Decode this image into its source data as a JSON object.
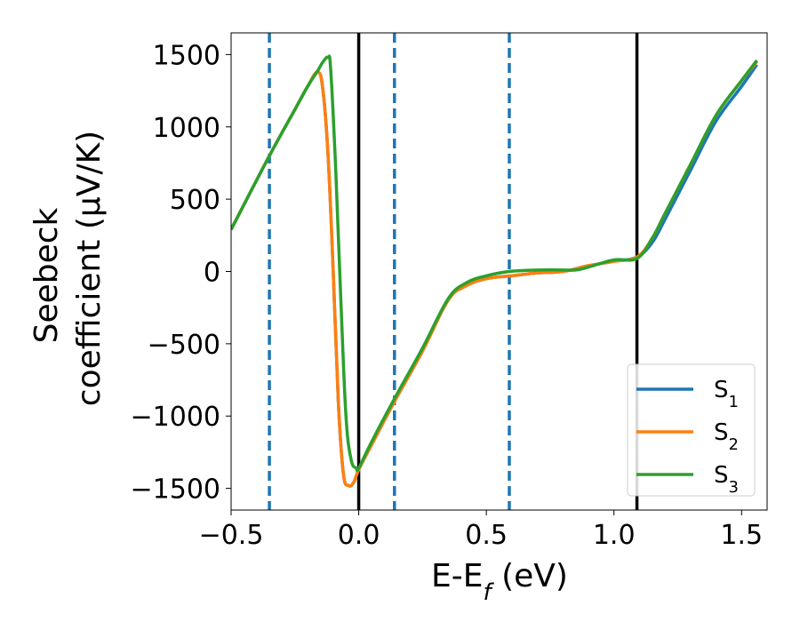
{
  "chart_data": {
    "type": "line",
    "xlabel": "E-E",
    "xlabel_sub": "f",
    "xlabel_unit": " (eV)",
    "ylabel_line1": "Seebeck",
    "ylabel_line2": "coefficient  (μV/K)",
    "xlim": [
      -0.5,
      1.6
    ],
    "ylim": [
      -1650,
      1650
    ],
    "xticks": [
      -0.5,
      0.0,
      0.5,
      1.0,
      1.5
    ],
    "xtick_labels": [
      "−0.5",
      "0.0",
      "0.5",
      "1.0",
      "1.5"
    ],
    "yticks": [
      -1500,
      -1000,
      -500,
      0,
      500,
      1000,
      1500
    ],
    "ytick_labels": [
      "−1500",
      "−1000",
      "−500",
      "0",
      "500",
      "1000",
      "1500"
    ],
    "vlines_solid": [
      0.0,
      1.09
    ],
    "vlines_dashed": [
      -0.35,
      0.14,
      0.59
    ],
    "legend_position": "lower-right",
    "colors": {
      "S1": "#1f77b4",
      "S2": "#ff7f0e",
      "S3": "#2ca02c",
      "solid_vline": "#000000",
      "dashed_vline": "#1f77b4"
    },
    "series": [
      {
        "key": "S1",
        "name": "S",
        "sub": "1",
        "color": "#1f77b4",
        "x": [
          -0.5,
          -0.35,
          -0.25,
          -0.2,
          -0.16,
          -0.14,
          -0.12,
          -0.1,
          -0.08,
          -0.06,
          -0.04,
          -0.02,
          0.0,
          0.05,
          0.14,
          0.25,
          0.35,
          0.42,
          0.5,
          0.6,
          0.7,
          0.8,
          0.9,
          1.0,
          1.09,
          1.15,
          1.2,
          1.3,
          1.4,
          1.5,
          1.56
        ],
        "y": [
          290,
          800,
          1120,
          1280,
          1380,
          1250,
          800,
          0,
          -900,
          -1400,
          -1480,
          -1460,
          -1370,
          -1200,
          -900,
          -550,
          -200,
          -100,
          -50,
          -30,
          -10,
          0,
          40,
          70,
          100,
          200,
          360,
          700,
          1040,
          1280,
          1430
        ]
      },
      {
        "key": "S2",
        "name": "S",
        "sub": "2",
        "color": "#ff7f0e",
        "x": [
          -0.5,
          -0.35,
          -0.25,
          -0.2,
          -0.16,
          -0.14,
          -0.12,
          -0.1,
          -0.08,
          -0.06,
          -0.04,
          -0.02,
          0.0,
          0.05,
          0.14,
          0.25,
          0.35,
          0.42,
          0.5,
          0.6,
          0.7,
          0.8,
          0.9,
          1.0,
          1.09,
          1.15,
          1.2,
          1.3,
          1.4,
          1.5,
          1.56
        ],
        "y": [
          290,
          800,
          1120,
          1280,
          1380,
          1250,
          800,
          0,
          -900,
          -1400,
          -1480,
          -1460,
          -1370,
          -1200,
          -900,
          -550,
          -200,
          -100,
          -50,
          -30,
          -10,
          0,
          40,
          70,
          100,
          230,
          400,
          740,
          1080,
          1320,
          1450
        ]
      },
      {
        "key": "S3",
        "name": "S",
        "sub": "3",
        "color": "#2ca02c",
        "x": [
          -0.5,
          -0.35,
          -0.25,
          -0.2,
          -0.16,
          -0.14,
          -0.12,
          -0.11,
          -0.09,
          -0.07,
          -0.05,
          -0.03,
          -0.01,
          0.0,
          0.05,
          0.14,
          0.25,
          0.35,
          0.42,
          0.5,
          0.59,
          0.7,
          0.8,
          0.85,
          0.9,
          1.0,
          1.09,
          1.15,
          1.2,
          1.3,
          1.4,
          1.5,
          1.56
        ],
        "y": [
          290,
          800,
          1120,
          1280,
          1390,
          1450,
          1480,
          1400,
          700,
          -200,
          -1000,
          -1300,
          -1360,
          -1360,
          -1180,
          -880,
          -530,
          -190,
          -80,
          -30,
          0,
          10,
          10,
          10,
          30,
          80,
          90,
          230,
          400,
          740,
          1080,
          1320,
          1460
        ]
      }
    ]
  }
}
